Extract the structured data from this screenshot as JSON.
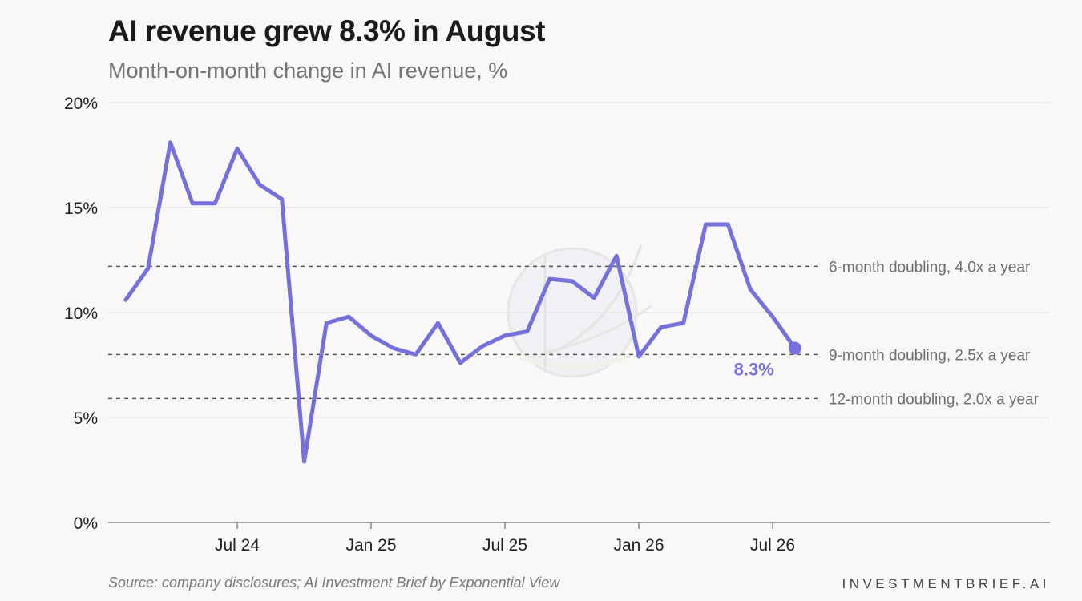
{
  "header": {
    "title": "AI revenue grew 8.3% in August",
    "subtitle": "Month-on-month change in AI revenue, %"
  },
  "footer": {
    "source": "Source: company disclosures; AI Investment Brief by Exponential View",
    "brand": "INVESTMENTBRIEF.AI"
  },
  "colors": {
    "line": "#7570dc",
    "grid": "#e8e6e3",
    "reference": "#555555",
    "axis": "#888888"
  },
  "chart_data": {
    "type": "line",
    "title": "AI revenue grew 8.3% in August",
    "subtitle": "Month-on-month change in AI revenue, %",
    "ylim": [
      0,
      20
    ],
    "y_ticks": [
      0,
      5,
      10,
      15,
      20
    ],
    "y_tick_labels": [
      "0%",
      "5%",
      "10%",
      "15%",
      "20%"
    ],
    "x_tick_labels": [
      "Jul 24",
      "Jan 25",
      "Jul 25",
      "Jan 26",
      "Jul 26"
    ],
    "x_tick_months": [
      6,
      12,
      18,
      24,
      30
    ],
    "grid": true,
    "series": [
      {
        "months": [
          1,
          2,
          3,
          4,
          5,
          6,
          7,
          8,
          9,
          10,
          11,
          12,
          13,
          14,
          15,
          16,
          17,
          18,
          19,
          20,
          21,
          22,
          23,
          24,
          25,
          26,
          27,
          28,
          29,
          30,
          31
        ],
        "values": [
          10.6,
          12.1,
          18.1,
          15.2,
          15.2,
          17.8,
          16.1,
          15.4,
          2.9,
          9.5,
          9.8,
          8.9,
          8.3,
          8.0,
          9.5,
          7.6,
          8.4,
          8.9,
          9.1,
          11.6,
          11.5,
          10.7,
          12.7,
          7.9,
          9.3,
          9.5,
          14.2,
          14.2,
          11.1,
          9.8,
          8.3
        ]
      }
    ],
    "end_label": "8.3%",
    "reference_lines": [
      {
        "value": 12.2,
        "label": "6-month doubling, 4.0x a year"
      },
      {
        "value": 8.0,
        "label": "9-month doubling, 2.5x a year"
      },
      {
        "value": 5.9,
        "label": "12-month doubling, 2.0x a year"
      }
    ]
  }
}
